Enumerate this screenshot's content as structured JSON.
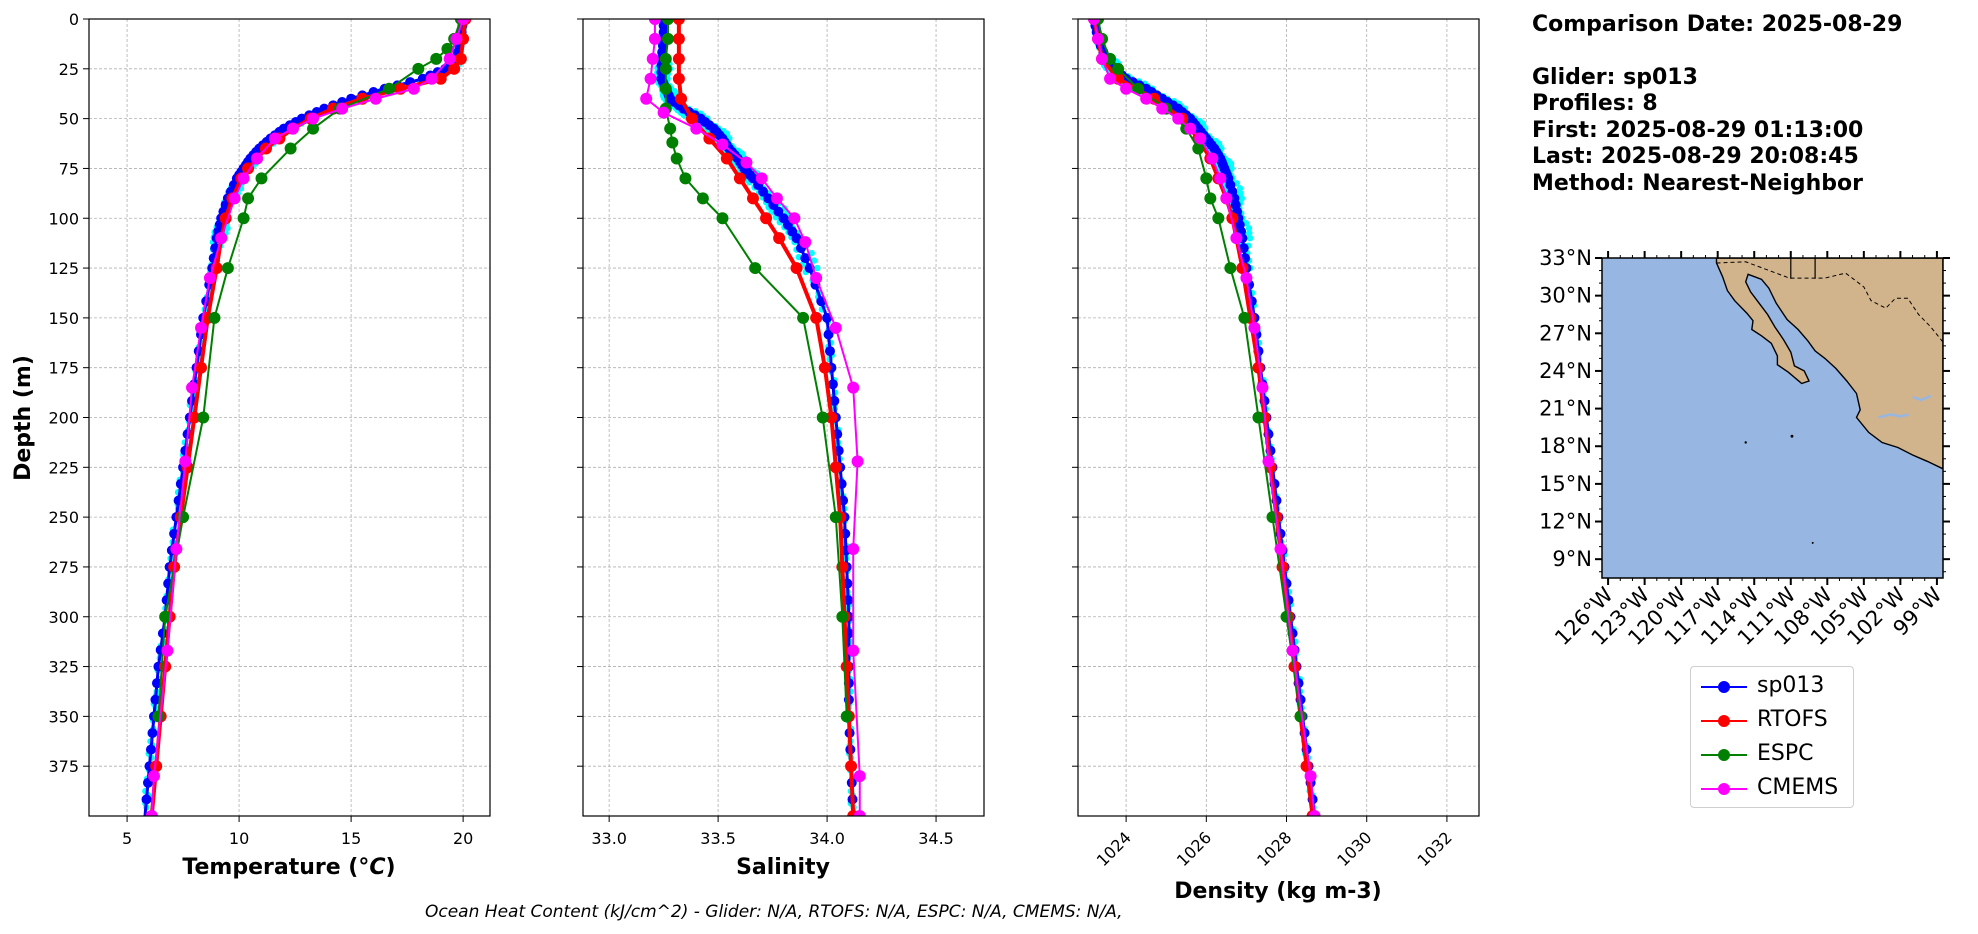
{
  "info": {
    "date_line": "Comparison Date: 2025-08-29",
    "glider_line": "Glider: sp013",
    "profiles_line": "Profiles: 8",
    "first_line": "First: 2025-08-29 01:13:00",
    "last_line": "Last: 2025-08-29 20:08:45",
    "method_line": "Method: Nearest-Neighbor"
  },
  "footer": "Ocean Heat Content (kJ/cm^2) - Glider: N/A,  RTOFS: N/A,  ESPC: N/A,  CMEMS: N/A,",
  "colors": {
    "sp013": "#0000ff",
    "sp013_raw": "#00ffff",
    "RTOFS": "#ff0000",
    "ESPC": "#008000",
    "CMEMS": "#ff00ff",
    "ocean": "#97b6e1",
    "land": "#d2b48c"
  },
  "legend": [
    {
      "name": "sp013",
      "color": "#0000ff"
    },
    {
      "name": "RTOFS",
      "color": "#ff0000"
    },
    {
      "name": "ESPC",
      "color": "#008000"
    },
    {
      "name": "CMEMS",
      "color": "#ff00ff"
    }
  ],
  "map": {
    "lat_ticks": [
      "33°N",
      "30°N",
      "27°N",
      "24°N",
      "21°N",
      "18°N",
      "15°N",
      "12°N",
      "9°N"
    ],
    "lon_ticks": [
      "126°W",
      "123°W",
      "120°W",
      "117°W",
      "114°W",
      "111°W",
      "108°W",
      "105°W",
      "102°W",
      "99°W"
    ],
    "lat_range": [
      7.5,
      33
    ],
    "lon_range": [
      -126.5,
      -98.5
    ]
  },
  "chart_data": [
    {
      "type": "line",
      "xlabel": "Temperature (°C)",
      "ylabel": "Depth (m)",
      "xlim": [
        3.3,
        21.2
      ],
      "ylim": [
        400,
        0
      ],
      "x_ticks": [
        5,
        10,
        15,
        20
      ],
      "y_ticks": [
        0,
        25,
        50,
        75,
        100,
        125,
        150,
        175,
        200,
        225,
        250,
        275,
        300,
        325,
        350,
        375
      ],
      "grid": true,
      "series": [
        {
          "name": "sp013",
          "depth": [
            0,
            10,
            20,
            25,
            30,
            35,
            40,
            45,
            50,
            55,
            60,
            65,
            70,
            75,
            80,
            90,
            100,
            110,
            125,
            150,
            175,
            200,
            225,
            250,
            275,
            300,
            325,
            350,
            375,
            400
          ],
          "values": [
            20.0,
            19.9,
            19.7,
            19.2,
            18.2,
            16.5,
            15.0,
            13.8,
            12.8,
            12.0,
            11.4,
            10.9,
            10.5,
            10.2,
            9.9,
            9.5,
            9.2,
            9.0,
            8.8,
            8.4,
            8.1,
            7.8,
            7.5,
            7.2,
            6.9,
            6.7,
            6.4,
            6.2,
            6.0,
            5.8
          ]
        },
        {
          "name": "RTOFS",
          "depth": [
            0,
            10,
            20,
            25,
            30,
            35,
            40,
            45,
            50,
            55,
            60,
            65,
            70,
            75,
            80,
            90,
            100,
            110,
            125,
            150,
            175,
            200,
            225,
            250,
            275,
            300,
            325,
            350,
            375,
            400
          ],
          "values": [
            20.1,
            20.0,
            19.9,
            19.6,
            19.0,
            17.2,
            15.5,
            14.2,
            13.2,
            12.4,
            11.8,
            11.2,
            10.8,
            10.4,
            10.1,
            9.7,
            9.4,
            9.2,
            9.0,
            8.6,
            8.3,
            8.0,
            7.7,
            7.4,
            7.1,
            6.9,
            6.7,
            6.5,
            6.3,
            6.1
          ]
        },
        {
          "name": "ESPC",
          "depth": [
            0,
            10,
            15,
            20,
            25,
            35,
            45,
            55,
            65,
            80,
            90,
            100,
            125,
            150,
            200,
            250,
            300,
            350
          ],
          "values": [
            19.9,
            19.6,
            19.3,
            18.8,
            18.0,
            16.7,
            14.5,
            13.3,
            12.3,
            11.0,
            10.4,
            10.2,
            9.5,
            8.9,
            8.4,
            7.5,
            6.7,
            6.4
          ]
        },
        {
          "name": "CMEMS",
          "depth": [
            0,
            10,
            20,
            30,
            35,
            40,
            45,
            50,
            55,
            60,
            70,
            80,
            90,
            110,
            130,
            155,
            185,
            222,
            266,
            317,
            380,
            400
          ],
          "values": [
            20.0,
            19.7,
            19.4,
            18.6,
            17.8,
            16.1,
            14.6,
            13.3,
            12.4,
            11.6,
            10.8,
            10.2,
            9.8,
            9.2,
            8.7,
            8.3,
            7.9,
            7.6,
            7.2,
            6.8,
            6.2,
            6.1
          ]
        }
      ]
    },
    {
      "type": "line",
      "xlabel": "Salinity",
      "ylim": [
        400,
        0
      ],
      "xlim": [
        32.88,
        34.72
      ],
      "x_ticks": [
        33.0,
        33.5,
        34.0,
        34.5
      ],
      "grid": true,
      "series": [
        {
          "name": "sp013",
          "depth": [
            0,
            10,
            20,
            30,
            35,
            40,
            45,
            50,
            55,
            60,
            65,
            70,
            75,
            80,
            90,
            100,
            110,
            125,
            150,
            175,
            200,
            225,
            250,
            275,
            300,
            325,
            350,
            375,
            400
          ],
          "values": [
            33.25,
            33.25,
            33.24,
            33.24,
            33.26,
            33.28,
            33.34,
            33.42,
            33.48,
            33.52,
            33.55,
            33.59,
            33.62,
            33.66,
            33.73,
            33.8,
            33.86,
            33.92,
            34.0,
            34.02,
            34.04,
            34.06,
            34.08,
            34.09,
            34.1,
            34.1,
            34.1,
            34.11,
            34.12
          ]
        },
        {
          "name": "RTOFS",
          "depth": [
            0,
            10,
            20,
            30,
            40,
            50,
            60,
            70,
            80,
            90,
            100,
            110,
            125,
            150,
            175,
            200,
            225,
            250,
            275,
            300,
            325,
            350,
            375,
            400
          ],
          "values": [
            33.32,
            33.32,
            33.32,
            33.32,
            33.33,
            33.38,
            33.46,
            33.54,
            33.6,
            33.66,
            33.72,
            33.78,
            33.86,
            33.95,
            33.99,
            34.02,
            34.04,
            34.06,
            34.07,
            34.08,
            34.09,
            34.1,
            34.11,
            34.12
          ]
        },
        {
          "name": "ESPC",
          "depth": [
            0,
            10,
            20,
            25,
            35,
            45,
            55,
            62,
            70,
            80,
            90,
            100,
            125,
            150,
            200,
            250,
            300,
            350
          ],
          "values": [
            33.27,
            33.27,
            33.26,
            33.26,
            33.26,
            33.26,
            33.28,
            33.29,
            33.31,
            33.35,
            33.43,
            33.52,
            33.67,
            33.89,
            33.98,
            34.04,
            34.07,
            34.09
          ]
        },
        {
          "name": "CMEMS",
          "depth": [
            0,
            10,
            20,
            30,
            40,
            47,
            55,
            63,
            72,
            80,
            90,
            100,
            112,
            130,
            155,
            185,
            222,
            266,
            317,
            380,
            400
          ],
          "values": [
            33.21,
            33.21,
            33.2,
            33.19,
            33.17,
            33.25,
            33.4,
            33.52,
            33.63,
            33.7,
            33.77,
            33.85,
            33.9,
            33.95,
            34.04,
            34.12,
            34.14,
            34.12,
            34.12,
            34.15,
            34.15
          ]
        }
      ]
    },
    {
      "type": "line",
      "xlabel": "Density (kg m-3)",
      "ylim": [
        400,
        0
      ],
      "xlim": [
        1022.8,
        1032.8
      ],
      "x_ticks": [
        1024,
        1026,
        1028,
        1030,
        1032
      ],
      "grid": true,
      "series": [
        {
          "name": "sp013",
          "depth": [
            0,
            10,
            20,
            25,
            30,
            35,
            40,
            45,
            50,
            55,
            60,
            65,
            70,
            75,
            80,
            90,
            100,
            110,
            125,
            150,
            175,
            200,
            225,
            250,
            275,
            300,
            325,
            350,
            375,
            400
          ],
          "values": [
            1023.2,
            1023.3,
            1023.5,
            1023.7,
            1024.0,
            1024.5,
            1024.9,
            1025.3,
            1025.6,
            1025.8,
            1026.0,
            1026.2,
            1026.35,
            1026.45,
            1026.55,
            1026.7,
            1026.8,
            1026.9,
            1027.0,
            1027.2,
            1027.35,
            1027.5,
            1027.65,
            1027.8,
            1027.95,
            1028.1,
            1028.25,
            1028.4,
            1028.55,
            1028.7
          ]
        },
        {
          "name": "RTOFS",
          "depth": [
            0,
            10,
            20,
            30,
            40,
            50,
            60,
            70,
            80,
            90,
            100,
            125,
            150,
            175,
            200,
            225,
            250,
            275,
            300,
            325,
            350,
            375,
            400
          ],
          "values": [
            1023.2,
            1023.3,
            1023.4,
            1023.8,
            1024.7,
            1025.4,
            1025.8,
            1026.1,
            1026.3,
            1026.5,
            1026.65,
            1026.9,
            1027.1,
            1027.3,
            1027.45,
            1027.6,
            1027.75,
            1027.9,
            1028.05,
            1028.2,
            1028.35,
            1028.5,
            1028.65
          ]
        },
        {
          "name": "ESPC",
          "depth": [
            0,
            10,
            20,
            25,
            35,
            45,
            55,
            65,
            80,
            90,
            100,
            125,
            150,
            200,
            250,
            300,
            350
          ],
          "values": [
            1023.3,
            1023.4,
            1023.6,
            1023.8,
            1024.3,
            1025.0,
            1025.5,
            1025.8,
            1026.0,
            1026.1,
            1026.3,
            1026.6,
            1026.95,
            1027.3,
            1027.65,
            1028.0,
            1028.35
          ]
        },
        {
          "name": "CMEMS",
          "depth": [
            0,
            10,
            20,
            30,
            35,
            40,
            45,
            50,
            55,
            60,
            70,
            80,
            90,
            110,
            130,
            155,
            185,
            222,
            266,
            317,
            380,
            400
          ],
          "values": [
            1023.2,
            1023.3,
            1023.4,
            1023.6,
            1024.0,
            1024.5,
            1024.9,
            1025.3,
            1025.6,
            1025.85,
            1026.15,
            1026.35,
            1026.5,
            1026.75,
            1027.0,
            1027.2,
            1027.4,
            1027.55,
            1027.85,
            1028.15,
            1028.6,
            1028.7
          ]
        }
      ]
    }
  ]
}
